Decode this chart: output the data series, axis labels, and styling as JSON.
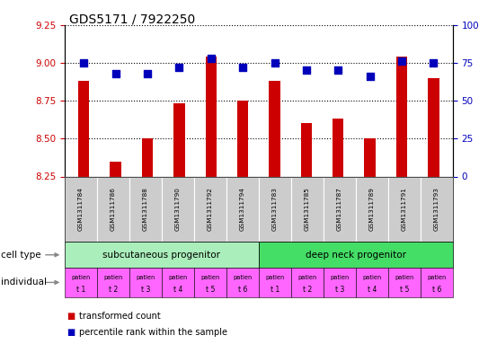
{
  "title": "GDS5171 / 7922250",
  "samples": [
    "GSM1311784",
    "GSM1311786",
    "GSM1311788",
    "GSM1311790",
    "GSM1311792",
    "GSM1311794",
    "GSM1311783",
    "GSM1311785",
    "GSM1311787",
    "GSM1311789",
    "GSM1311791",
    "GSM1311793"
  ],
  "transformed_counts": [
    8.88,
    8.35,
    8.5,
    8.73,
    9.04,
    8.75,
    8.88,
    8.6,
    8.63,
    8.5,
    9.04,
    8.9
  ],
  "percentile_ranks": [
    75,
    68,
    68,
    72,
    78,
    72,
    75,
    70,
    70,
    66,
    76,
    75
  ],
  "ylim_left": [
    8.25,
    9.25
  ],
  "ylim_right": [
    0,
    100
  ],
  "yticks_left": [
    8.25,
    8.5,
    8.75,
    9.0,
    9.25
  ],
  "yticks_right": [
    0,
    25,
    50,
    75,
    100
  ],
  "ytick_labels_right": [
    "0",
    "25",
    "50",
    "75",
    "100%"
  ],
  "bar_color": "#cc0000",
  "dot_color": "#0000bb",
  "grid_color": "#000000",
  "cell_type_groups": [
    {
      "label": "subcutaneous progenitor",
      "start": 0,
      "end": 6,
      "color": "#aaeebb"
    },
    {
      "label": "deep neck progenitor",
      "start": 6,
      "end": 12,
      "color": "#44dd66"
    }
  ],
  "individual_labels": [
    "t 1",
    "t 2",
    "t 3",
    "t 4",
    "t 5",
    "t 6",
    "t 1",
    "t 2",
    "t 3",
    "t 4",
    "t 5",
    "t 6"
  ],
  "individual_color": "#ff66ff",
  "individual_prefix": "patien",
  "cell_type_row_label": "cell type",
  "individual_row_label": "individual",
  "legend_bar_label": "transformed count",
  "legend_dot_label": "percentile rank within the sample",
  "bg_color": "#ffffff",
  "tick_label_color_left": "#cc0000",
  "tick_label_color_right": "#0000bb",
  "title_fontsize": 10,
  "tick_fontsize": 7.5,
  "bar_width": 0.35,
  "dot_size": 35,
  "sample_box_color": "#cccccc",
  "arrow_color": "#888888"
}
